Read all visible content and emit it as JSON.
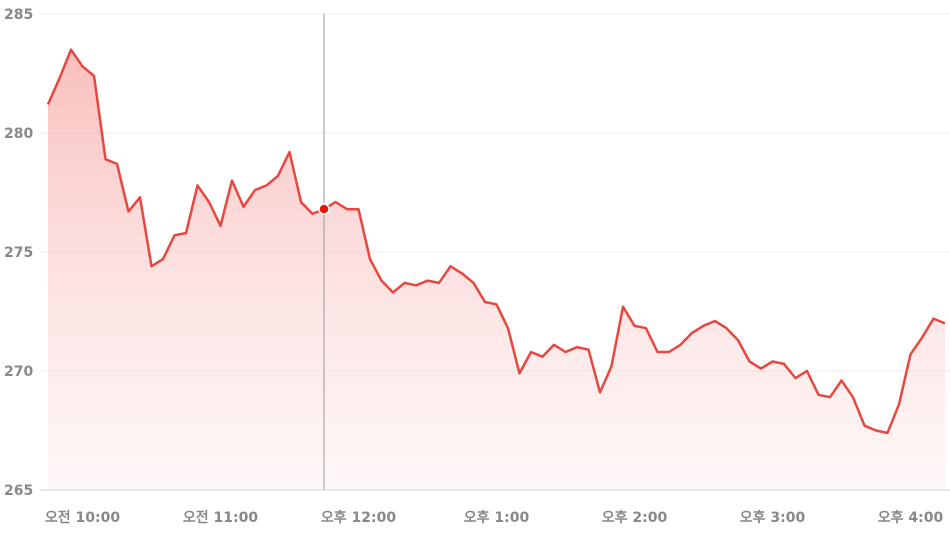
{
  "chart_data": {
    "type": "area",
    "x": [
      585,
      590,
      595,
      600,
      605,
      610,
      615,
      620,
      625,
      630,
      635,
      640,
      645,
      650,
      655,
      660,
      665,
      670,
      675,
      680,
      685,
      690,
      695,
      700,
      705,
      710,
      715,
      720,
      725,
      730,
      735,
      740,
      745,
      750,
      755,
      760,
      765,
      770,
      775,
      780,
      785,
      790,
      795,
      800,
      805,
      810,
      815,
      820,
      825,
      830,
      835,
      840,
      845,
      850,
      855,
      860,
      865,
      870,
      875,
      880,
      885,
      890,
      895,
      900,
      905,
      910,
      915,
      920,
      925,
      930,
      935,
      940,
      945,
      950,
      955,
      960,
      965,
      970,
      975
    ],
    "series": [
      {
        "color": "#e8473f",
        "values": [
          281.2,
          282.3,
          283.5,
          282.8,
          282.4,
          278.9,
          278.7,
          276.7,
          277.3,
          274.4,
          274.7,
          275.7,
          275.8,
          277.8,
          277.1,
          276.1,
          278.0,
          276.9,
          277.6,
          277.8,
          278.2,
          279.2,
          277.1,
          276.6,
          276.8,
          277.1,
          276.8,
          276.8,
          274.7,
          273.8,
          273.3,
          273.7,
          273.6,
          273.8,
          273.7,
          274.4,
          274.1,
          273.7,
          272.9,
          272.8,
          271.8,
          269.9,
          270.8,
          270.6,
          271.1,
          270.8,
          271.0,
          270.9,
          269.1,
          270.2,
          272.7,
          271.9,
          271.8,
          270.8,
          270.8,
          271.1,
          271.6,
          271.9,
          272.1,
          271.8,
          271.3,
          270.4,
          270.1,
          270.4,
          270.3,
          269.7,
          270.0,
          269.0,
          268.9,
          269.6,
          268.9,
          267.7,
          267.5,
          267.4,
          268.6,
          270.7,
          271.4,
          272.2,
          272.0
        ]
      }
    ],
    "xlim": [
      585,
      975
    ],
    "xticks": [
      {
        "value": 600,
        "label": "오전 10:00"
      },
      {
        "value": 660,
        "label": "오전 11:00"
      },
      {
        "value": 720,
        "label": "오후 12:00"
      },
      {
        "value": 780,
        "label": "오후 1:00"
      },
      {
        "value": 840,
        "label": "오후 2:00"
      },
      {
        "value": 900,
        "label": "오후 3:00"
      },
      {
        "value": 960,
        "label": "오후 4:00"
      }
    ],
    "ylim": [
      265,
      285
    ],
    "yticks": [
      265,
      270,
      275,
      280,
      285
    ],
    "grid": true
  }
}
